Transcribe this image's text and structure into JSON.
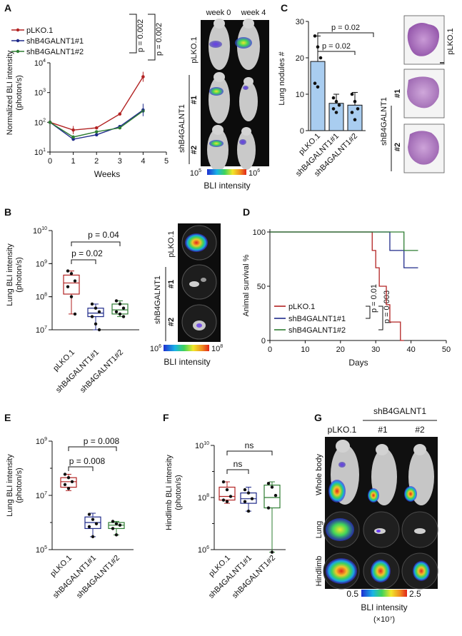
{
  "panels": {
    "A": {
      "letter": "A",
      "photo_cols": [
        "week 0",
        "week 4"
      ],
      "photo_rows": [
        "pLKO.1",
        "#1",
        "#2"
      ],
      "photo_group": "shB4GALNT1",
      "scale_min": "10",
      "scale_min_exp": "5",
      "scale_max": "10",
      "scale_max_exp": "6",
      "scale_label": "BLI intensity"
    },
    "B": {
      "letter": "B",
      "photo_rows": [
        "pLKO.1",
        "#1",
        "#2"
      ],
      "photo_group": "shB4GALNT1",
      "scale_min": "10",
      "scale_min_exp": "6",
      "scale_max": "10",
      "scale_max_exp": "8",
      "scale_label": "BLI intensity"
    },
    "C": {
      "letter": "C",
      "photo_rows": [
        "pLKO.1",
        "#1",
        "#2"
      ],
      "photo_group": "shB4GALNT1"
    },
    "D": {
      "letter": "D"
    },
    "E": {
      "letter": "E"
    },
    "F": {
      "letter": "F"
    },
    "G": {
      "letter": "G",
      "group_label": "shB4GALNT1",
      "col_labels": [
        "pLKO.1",
        "#1",
        "#2"
      ],
      "row_labels": [
        "Whole body",
        "Lung",
        "Hindlimb"
      ],
      "scale_min": "0.5",
      "scale_max": "2.5",
      "scale_label": "BLI intensity",
      "scale_unit": "(×10⁷)"
    }
  },
  "colors": {
    "plko": "#b22222",
    "sh1": "#1f2a8a",
    "sh2": "#2e7d32"
  },
  "chart_data": [
    {
      "panel": "A",
      "type": "line",
      "xlabel": "Weeks",
      "ylabel": "Normalized BLI intensity (photon/s)",
      "yscale": "log",
      "xlim": [
        0,
        5
      ],
      "ylim": [
        10,
        10000
      ],
      "x_ticks": [
        "0",
        "1",
        "2",
        "3",
        "4",
        "5"
      ],
      "y_ticks": [
        {
          "base": "10",
          "exp": "1"
        },
        {
          "base": "10",
          "exp": "2"
        },
        {
          "base": "10",
          "exp": "3"
        },
        {
          "base": "10",
          "exp": "4"
        }
      ],
      "x": [
        0,
        1,
        2,
        3,
        4
      ],
      "series": [
        {
          "name": "pLKO.1",
          "values": [
            100,
            55,
            65,
            190,
            3400
          ]
        },
        {
          "name": "shB4GALNT1#1",
          "values": [
            100,
            27,
            38,
            72,
            260
          ]
        },
        {
          "name": "shB4GALNT1#2",
          "values": [
            100,
            32,
            48,
            65,
            240
          ]
        }
      ],
      "annotations": [
        "p = 0.002",
        "p = 0.002"
      ]
    },
    {
      "panel": "C",
      "type": "bar",
      "ylabel": "Lung nodules #",
      "ylim": [
        0,
        30
      ],
      "y_ticks": [
        "0",
        "10",
        "20",
        "30"
      ],
      "categories": [
        "pLKO.1",
        "shB4GALNT1#1",
        "shB4GALNT1#2"
      ],
      "values": [
        19,
        7.5,
        7
      ],
      "errors": [
        7,
        2.5,
        3.5
      ],
      "points": [
        [
          26,
          23,
          20,
          13,
          12
        ],
        [
          9,
          8,
          7,
          6,
          5
        ],
        [
          10,
          8,
          6,
          5,
          3
        ]
      ],
      "annotations": [
        "p = 0.02",
        "p = 0.02"
      ]
    },
    {
      "panel": "B",
      "type": "box",
      "ylabel": "Lung BLI intensity (photon/s)",
      "yscale": "log",
      "ylim": [
        10000000,
        10000000000
      ],
      "y_ticks": [
        {
          "base": "10",
          "exp": "7"
        },
        {
          "base": "10",
          "exp": "8"
        },
        {
          "base": "10",
          "exp": "9"
        },
        {
          "base": "10",
          "exp": "10"
        }
      ],
      "categories": [
        "pLKO.1",
        "shB4GALNT1#1",
        "shB4GALNT1#2"
      ],
      "boxes": [
        {
          "min": 30000000,
          "q1": 120000000,
          "median": 260000000,
          "q3": 450000000,
          "max": 600000000,
          "points": [
            600000000,
            500000000,
            300000000,
            200000000,
            100000000,
            30000000
          ]
        },
        {
          "min": 10000000,
          "q1": 25000000,
          "median": 32000000,
          "q3": 45000000,
          "max": 60000000,
          "points": [
            60000000,
            45000000,
            35000000,
            25000000,
            15000000,
            10000000
          ]
        },
        {
          "min": 25000000,
          "q1": 30000000,
          "median": 40000000,
          "q3": 60000000,
          "max": 75000000,
          "points": [
            75000000,
            60000000,
            45000000,
            35000000,
            30000000,
            25000000
          ]
        }
      ],
      "annotations": [
        "p = 0.04",
        "p = 0.02"
      ]
    },
    {
      "panel": "D",
      "type": "line",
      "xlabel": "Days",
      "ylabel": "Animal survival %",
      "xlim": [
        0,
        50
      ],
      "ylim": [
        0,
        100
      ],
      "x_ticks": [
        "0",
        "10",
        "20",
        "30",
        "40",
        "50"
      ],
      "y_ticks": [
        "0",
        "50",
        "100"
      ],
      "series": [
        {
          "name": "pLKO.1",
          "steps": [
            [
              0,
              100
            ],
            [
              29,
              100
            ],
            [
              29,
              83
            ],
            [
              30,
              83
            ],
            [
              30,
              67
            ],
            [
              31,
              67
            ],
            [
              31,
              50
            ],
            [
              33,
              50
            ],
            [
              33,
              33
            ],
            [
              34,
              33
            ],
            [
              34,
              17
            ],
            [
              37,
              17
            ],
            [
              37,
              0
            ],
            [
              38,
              0
            ]
          ]
        },
        {
          "name": "shB4GALNT1#1",
          "steps": [
            [
              0,
              100
            ],
            [
              34,
              100
            ],
            [
              34,
              83
            ],
            [
              38,
              83
            ],
            [
              38,
              67
            ],
            [
              42,
              67
            ]
          ]
        },
        {
          "name": "shB4GALNT1#2",
          "steps": [
            [
              0,
              100
            ],
            [
              38,
              100
            ],
            [
              38,
              83
            ],
            [
              42,
              83
            ]
          ]
        }
      ],
      "annotations": [
        "p = 0.01",
        "p = 0.003"
      ]
    },
    {
      "panel": "E",
      "type": "box",
      "ylabel": "Lung BLI intensity (photon/s)",
      "yscale": "log",
      "ylim": [
        100000,
        1000000000
      ],
      "y_ticks": [
        {
          "base": "10",
          "exp": "5"
        },
        {
          "base": "10",
          "exp": "7"
        },
        {
          "base": "10",
          "exp": "9"
        }
      ],
      "categories": [
        "pLKO.1",
        "shB4GALNT1#1",
        "shB4GALNT1#2"
      ],
      "boxes": [
        {
          "min": 15000000,
          "q1": 20000000,
          "median": 32000000,
          "q3": 45000000,
          "max": 60000000,
          "points": [
            60000000,
            45000000,
            32000000,
            25000000,
            18000000
          ]
        },
        {
          "min": 300000,
          "q1": 600000,
          "median": 1000000,
          "q3": 1600000,
          "max": 2200000,
          "points": [
            2000000,
            1300000,
            900000,
            700000,
            300000
          ]
        },
        {
          "min": 350000,
          "q1": 600000,
          "median": 800000,
          "q3": 1000000,
          "max": 1100000,
          "points": [
            1100000,
            900000,
            800000,
            600000,
            350000
          ]
        }
      ],
      "annotations": [
        "p = 0.008",
        "p = 0.008"
      ]
    },
    {
      "panel": "F",
      "type": "box",
      "ylabel": "Hindlimb BLI intensity (photon/s)",
      "yscale": "log",
      "ylim": [
        1000000,
        10000000000
      ],
      "y_ticks": [
        {
          "base": "10",
          "exp": "6"
        },
        {
          "base": "10",
          "exp": "8"
        },
        {
          "base": "10",
          "exp": "10"
        }
      ],
      "categories": [
        "pLKO.1",
        "shB4GALNT1#1",
        "shB4GALNT1#2"
      ],
      "boxes": [
        {
          "min": 60000000,
          "q1": 80000000,
          "median": 110000000,
          "q3": 250000000,
          "max": 400000000,
          "points": [
            400000000,
            200000000,
            110000000,
            80000000,
            70000000
          ]
        },
        {
          "min": 30000000,
          "q1": 60000000,
          "median": 90000000,
          "q3": 150000000,
          "max": 250000000,
          "points": [
            200000000,
            150000000,
            90000000,
            70000000,
            30000000
          ]
        },
        {
          "min": 800000,
          "q1": 40000000,
          "median": 100000000,
          "q3": 300000000,
          "max": 400000000,
          "points": [
            350000000,
            250000000,
            120000000,
            40000000,
            800000
          ]
        }
      ],
      "annotations": [
        "ns",
        "ns"
      ]
    }
  ]
}
